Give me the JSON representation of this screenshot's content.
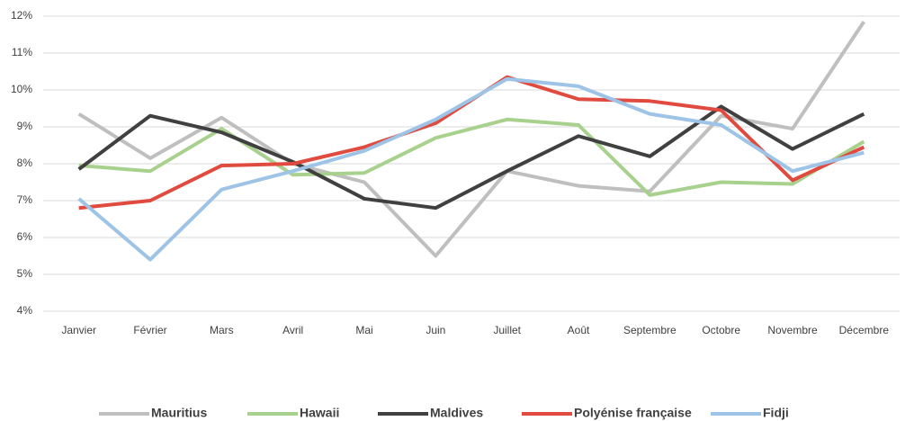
{
  "chart_data": {
    "type": "line",
    "categories": [
      "Janvier",
      "Février",
      "Mars",
      "Avril",
      "Mai",
      "Juin",
      "Juillet",
      "Août",
      "Septembre",
      "Octobre",
      "Novembre",
      "Décembre"
    ],
    "series": [
      {
        "name": "Mauritius",
        "color": "#bfbfbf",
        "values": [
          9.35,
          8.15,
          9.25,
          8.0,
          7.5,
          5.5,
          7.8,
          7.4,
          7.25,
          9.3,
          8.95,
          11.85
        ]
      },
      {
        "name": "Hawaii",
        "color": "#a9d18e",
        "values": [
          7.95,
          7.8,
          8.95,
          7.7,
          7.75,
          8.7,
          9.2,
          9.05,
          7.15,
          7.5,
          7.45,
          8.6
        ]
      },
      {
        "name": "Maldives",
        "color": "#404040",
        "values": [
          7.85,
          9.3,
          8.85,
          8.05,
          7.05,
          6.8,
          7.8,
          8.75,
          8.2,
          9.55,
          8.4,
          9.35
        ]
      },
      {
        "name": "Polyénise française",
        "color": "#e04a3f",
        "values": [
          6.8,
          7.0,
          7.95,
          8.0,
          8.45,
          9.1,
          10.35,
          9.75,
          9.7,
          9.45,
          7.55,
          8.45
        ]
      },
      {
        "name": "Fidji",
        "color": "#9dc3e6",
        "values": [
          7.05,
          5.4,
          7.3,
          7.8,
          8.35,
          9.2,
          10.3,
          10.1,
          9.35,
          9.05,
          7.8,
          8.3
        ]
      }
    ],
    "ylim": [
      4,
      12
    ],
    "yticks": [
      {
        "value": 4,
        "label": "4%"
      },
      {
        "value": 5,
        "label": "5%"
      },
      {
        "value": 6,
        "label": "6%"
      },
      {
        "value": 7,
        "label": "7%"
      },
      {
        "value": 8,
        "label": "8%"
      },
      {
        "value": 9,
        "label": "9%"
      },
      {
        "value": 10,
        "label": "10%"
      },
      {
        "value": 11,
        "label": "11%"
      },
      {
        "value": 12,
        "label": "12%"
      }
    ],
    "grid": true,
    "legend": "bottom"
  }
}
